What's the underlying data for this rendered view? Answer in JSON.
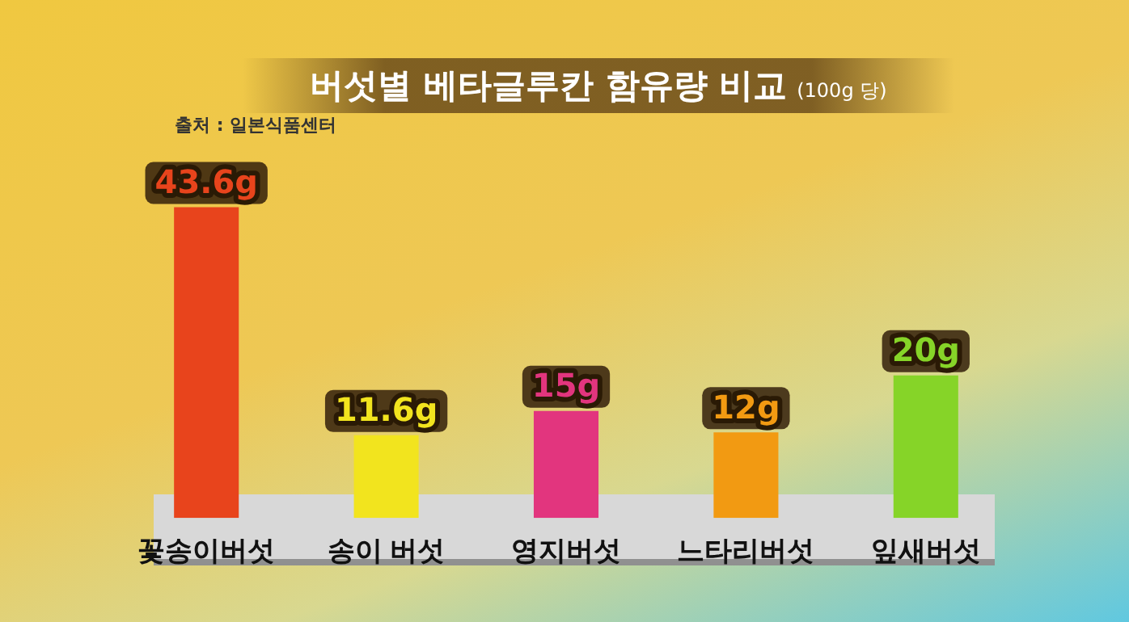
{
  "chart_data": {
    "type": "bar",
    "title": "버섯별 베타글루칸 함유량 비교",
    "subtitle": "(100g 당)",
    "annotations": [
      "출처 : 일본식품센터"
    ],
    "categories": [
      "꽃송이버섯",
      "송이 버섯",
      "영지버섯",
      "느타리버섯",
      "잎새버섯"
    ],
    "values": [
      43.6,
      11.6,
      15,
      12,
      20
    ],
    "value_labels": [
      "43.6g",
      "11.6g",
      "15g",
      "12g",
      "20g"
    ],
    "colors": [
      "#e8441c",
      "#f2e41e",
      "#e2357e",
      "#f29a12",
      "#86d428"
    ]
  }
}
